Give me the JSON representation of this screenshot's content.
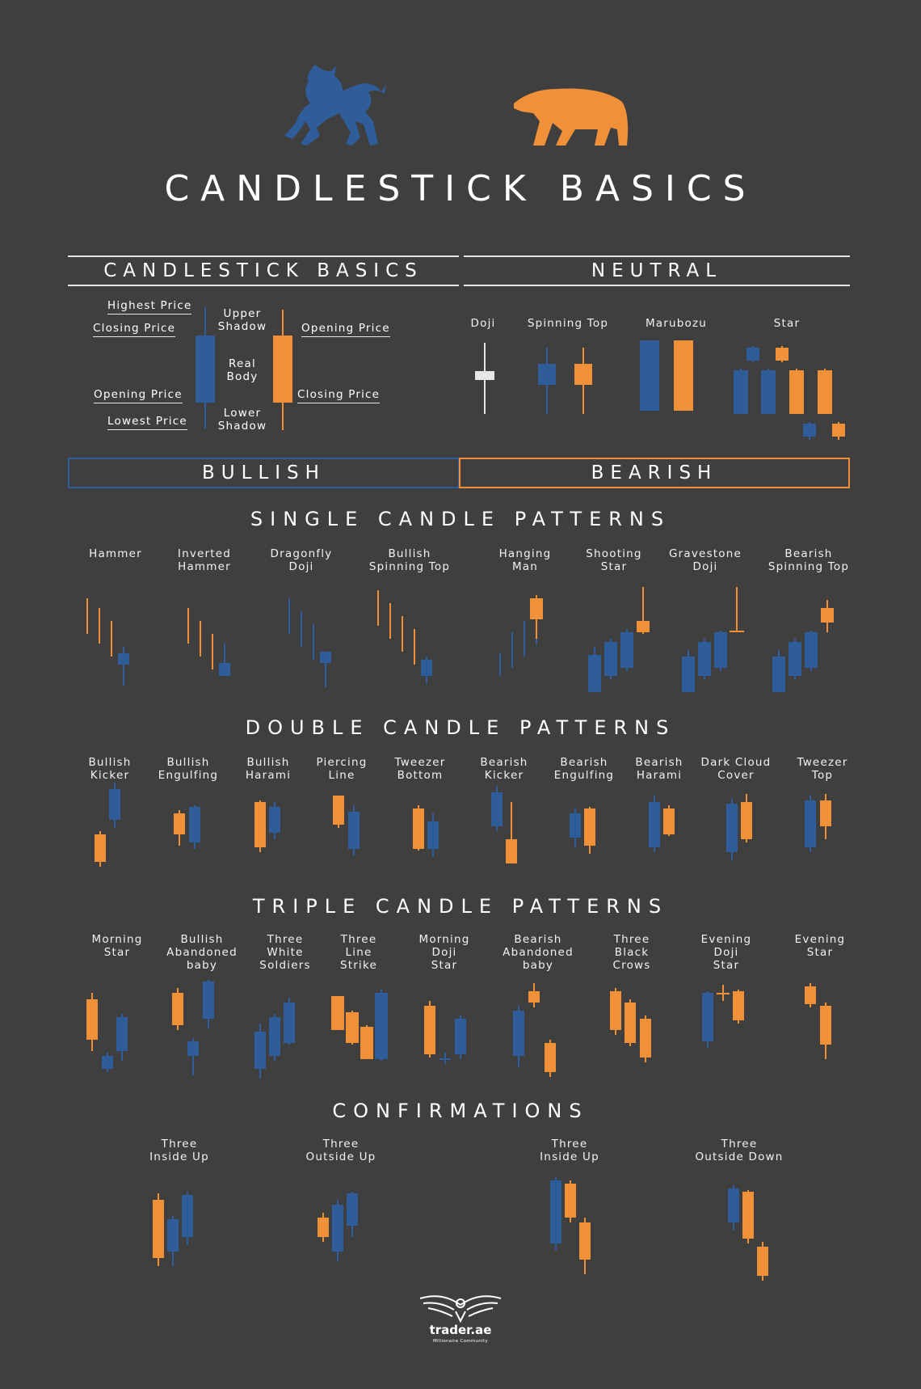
{
  "colors": {
    "background": "#3f3f3f",
    "bull": "#2f5d99",
    "bear": "#f0913a",
    "text": "#ffffff",
    "doji_neutral": "#e6e6e6"
  },
  "title": "CANDLESTICK BASICS",
  "headers": {
    "basics": "CANDLESTICK BASICS",
    "neutral": "NEUTRAL",
    "bullish": "BULLISH",
    "bearish": "BEARISH"
  },
  "basics": {
    "highest_price": "Highest Price",
    "closing_price_left": "Closing Price",
    "opening_price_left": "Opening Price",
    "lowest_price": "Lowest Price",
    "upper_shadow": [
      "Upper",
      "Shadow"
    ],
    "real_body": [
      "Real",
      "Body"
    ],
    "lower_shadow": [
      "Lower",
      "Shadow"
    ],
    "opening_price_right": "Opening Price",
    "closing_price_right": "Closing Price"
  },
  "neutral": [
    {
      "label": "Doji"
    },
    {
      "label": "Spinning Top"
    },
    {
      "label": "Marubozu"
    },
    {
      "label": "Star"
    }
  ],
  "sections": {
    "single": "SINGLE CANDLE PATTERNS",
    "double": "DOUBLE CANDLE PATTERNS",
    "triple": "TRIPLE CANDLE PATTERNS",
    "confirmations": "CONFIRMATIONS"
  },
  "single_patterns": [
    {
      "line1": "Hammer",
      "line2": ""
    },
    {
      "line1": "Inverted",
      "line2": "Hammer"
    },
    {
      "line1": "Dragonfly",
      "line2": "Doji"
    },
    {
      "line1": "Bullish",
      "line2": "Spinning Top"
    },
    {
      "line1": "Hanging",
      "line2": "Man"
    },
    {
      "line1": "Shooting",
      "line2": "Star"
    },
    {
      "line1": "Gravestone",
      "line2": "Doji"
    },
    {
      "line1": "Bearish",
      "line2": "Spinning Top"
    }
  ],
  "double_patterns": [
    {
      "line1": "Bullish",
      "line2": "Kicker"
    },
    {
      "line1": "Bullish",
      "line2": "Engulfing"
    },
    {
      "line1": "Bullish",
      "line2": "Harami"
    },
    {
      "line1": "Piercing",
      "line2": "Line"
    },
    {
      "line1": "Tweezer",
      "line2": "Bottom"
    },
    {
      "line1": "Bearish",
      "line2": "Kicker"
    },
    {
      "line1": "Bearish",
      "line2": "Engulfing"
    },
    {
      "line1": "Bearish",
      "line2": "Harami"
    },
    {
      "line1": "Dark Cloud",
      "line2": "Cover"
    },
    {
      "line1": "Tweezer",
      "line2": "Top"
    }
  ],
  "triple_patterns": [
    {
      "line1": "Morning",
      "line2": "Star",
      "line3": ""
    },
    {
      "line1": "Bullish",
      "line2": "Abandoned",
      "line3": "baby"
    },
    {
      "line1": "Three",
      "line2": "White",
      "line3": "Soldiers"
    },
    {
      "line1": "Three",
      "line2": "Line",
      "line3": "Strike"
    },
    {
      "line1": "Morning",
      "line2": "Doji",
      "line3": "Star"
    },
    {
      "line1": "Bearish",
      "line2": "Abandoned",
      "line3": "baby"
    },
    {
      "line1": "Three",
      "line2": "Black",
      "line3": "Crows"
    },
    {
      "line1": "Evening",
      "line2": "Doji",
      "line3": "Star"
    },
    {
      "line1": "Evening",
      "line2": "Star",
      "line3": ""
    }
  ],
  "confirmations": [
    {
      "line1": "Three",
      "line2": "Inside Up"
    },
    {
      "line1": "Three",
      "line2": "Outside Up"
    },
    {
      "line1": "Three",
      "line2": "Inside Up"
    },
    {
      "line1": "Three",
      "line2": "Outside Down"
    }
  ],
  "brand": {
    "name": "trader.ae",
    "tagline": "Millionaire Community"
  }
}
